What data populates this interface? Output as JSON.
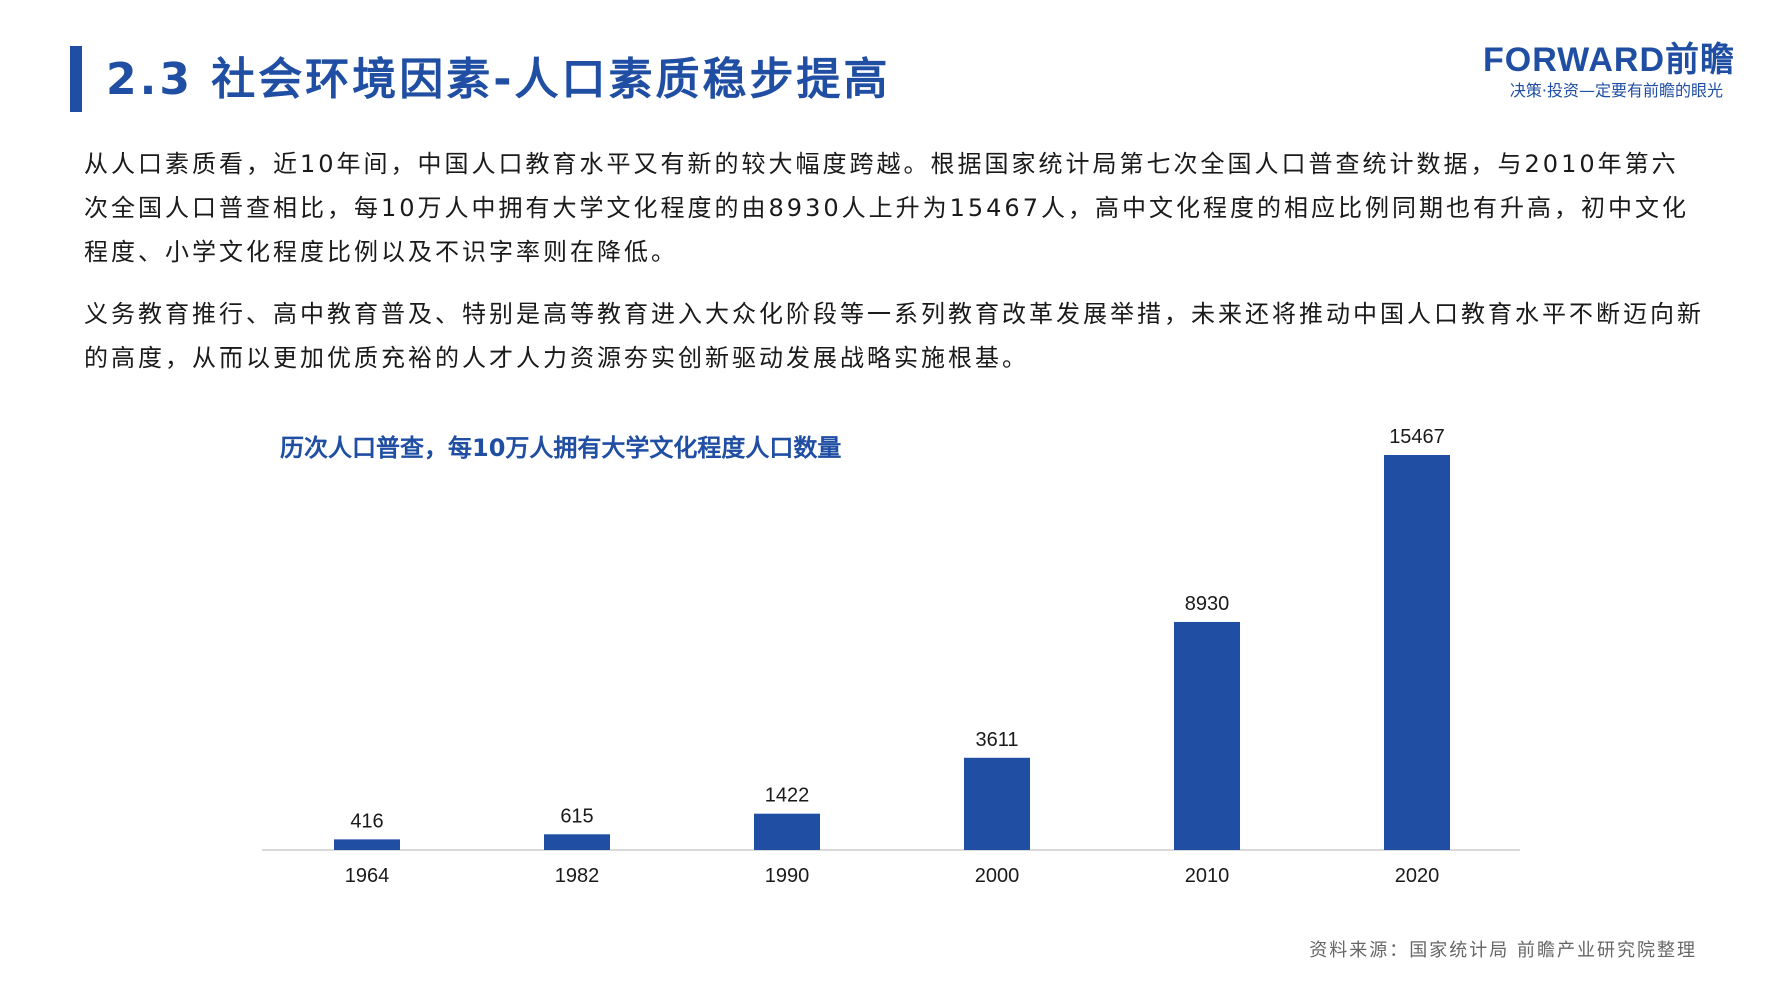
{
  "header": {
    "title": "2.3 社会环境因素-人口素质稳步提高",
    "logo_main": "FORWARD前瞻",
    "logo_tagline": "决策·投资—定要有前瞻的眼光"
  },
  "body": {
    "paragraph1": "从人口素质看，近10年间，中国人口教育水平又有新的较大幅度跨越。根据国家统计局第七次全国人口普查统计数据，与2010年第六次全国人口普查相比，每10万人中拥有大学文化程度的由8930人上升为15467人，高中文化程度的相应比例同期也有升高，初中文化程度、小学文化程度比例以及不识字率则在降低。",
    "paragraph2": "义务教育推行、高中教育普及、特别是高等教育进入大众化阶段等一系列教育改革发展举措，未来还将推动中国人口教育水平不断迈向新的高度，从而以更加优质充裕的人才人力资源夯实创新驱动发展战略实施根基。"
  },
  "chart_data": {
    "type": "bar",
    "title": "历次人口普查，每10万人拥有大学文化程度人口数量",
    "categories": [
      "1964",
      "1982",
      "1990",
      "2000",
      "2010",
      "2020"
    ],
    "values": [
      416,
      615,
      1422,
      3611,
      8930,
      15467
    ],
    "ylim": [
      0,
      15467
    ],
    "grid": false,
    "bar_color": "#1f4ea3"
  },
  "footer": {
    "source": "资料来源：国家统计局 前瞻产业研究院整理"
  },
  "colors": {
    "accent": "#1f4ea3"
  }
}
